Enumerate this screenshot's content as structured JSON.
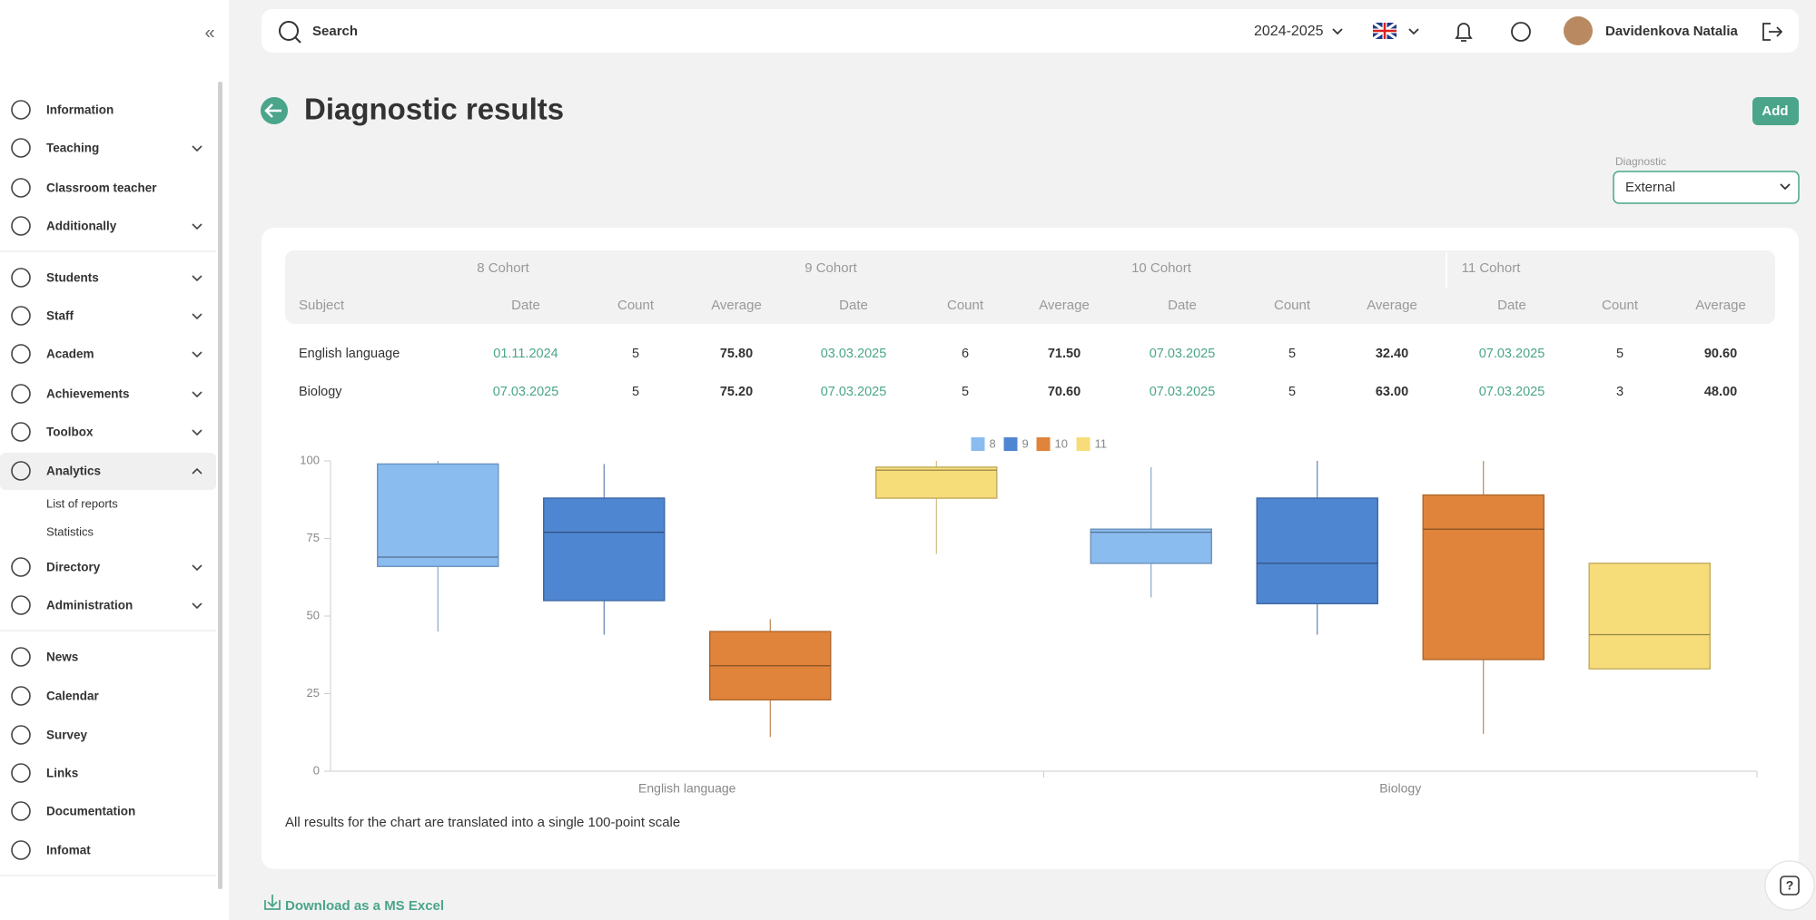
{
  "sidebar": {
    "items": [
      "Information",
      "Teaching",
      "Classroom teacher",
      "Additionally",
      "Students",
      "Staff",
      "Academ",
      "Achievements",
      "Toolbox",
      "Analytics",
      "Directory",
      "Administration",
      "News",
      "Calendar",
      "Survey",
      "Links",
      "Documentation",
      "Infomat"
    ],
    "submenu": [
      "List of reports",
      "Statistics"
    ]
  },
  "header": {
    "search": "Search",
    "year": "2024-2025",
    "user": "Davidenkova Natalia"
  },
  "page": {
    "title": "Diagnostic results",
    "add": "Add",
    "filter_label": "Diagnostic",
    "filter_value": "External"
  },
  "table": {
    "cohorts": [
      "8 Cohort",
      "9 Cohort",
      "10 Cohort",
      "11 Cohort"
    ],
    "columns": [
      "Subject",
      "Date",
      "Count",
      "Average",
      "Date",
      "Count",
      "Average",
      "Date",
      "Count",
      "Average",
      "Date",
      "Count",
      "Average"
    ],
    "rows": [
      [
        "English language",
        "01.11.2024",
        5,
        "75.80",
        "03.03.2025",
        6,
        "71.50",
        "07.03.2025",
        5,
        "32.40",
        "07.03.2025",
        5,
        "90.60"
      ],
      [
        "Biology",
        "07.03.2025",
        5,
        "75.20",
        "07.03.2025",
        5,
        "70.60",
        "07.03.2025",
        5,
        "63.00",
        "07.03.2025",
        3,
        "48.00"
      ]
    ]
  },
  "chart_data": {
    "type": "box",
    "categories": [
      "English language",
      "Biology"
    ],
    "series": [
      {
        "name": "8",
        "color": "#8bbcf0",
        "values": [
          {
            "min": 45,
            "q1": 66,
            "median": 69,
            "q3": 99,
            "max": 100
          },
          {
            "min": 56,
            "q1": 67,
            "median": 77,
            "q3": 78,
            "max": 98
          }
        ]
      },
      {
        "name": "9",
        "color": "#4f86d1",
        "values": [
          {
            "min": 44,
            "q1": 55,
            "median": 77,
            "q3": 88,
            "max": 99
          },
          {
            "min": 44,
            "q1": 54,
            "median": 67,
            "q3": 88,
            "max": 100
          }
        ]
      },
      {
        "name": "10",
        "color": "#e0843b",
        "values": [
          {
            "min": 11,
            "q1": 23,
            "median": 34,
            "q3": 45,
            "max": 49
          },
          {
            "min": 12,
            "q1": 36,
            "median": 78,
            "q3": 89,
            "max": 100
          }
        ]
      },
      {
        "name": "11",
        "color": "#f7dc7a",
        "values": [
          {
            "min": 70,
            "q1": 88,
            "median": 97,
            "q3": 98,
            "max": 100
          },
          {
            "min": 33,
            "q1": 33,
            "median": 44,
            "q3": 67,
            "max": 67
          }
        ]
      }
    ],
    "ylim": [
      0,
      100
    ],
    "yticks": [
      0,
      25,
      50,
      75,
      100
    ],
    "grid": false,
    "legend": "top"
  },
  "note": "All results for the chart are translated into a single 100-point scale",
  "download": "Download as a MS Excel",
  "help": "?"
}
